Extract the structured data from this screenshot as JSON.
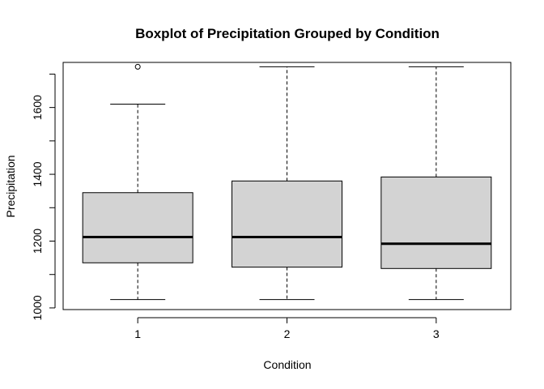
{
  "chart_data": {
    "type": "boxplot",
    "title": "Boxplot of Precipitation Grouped by Condition",
    "xlabel": "Condition",
    "ylabel": "Precipitation",
    "ylim": [
      995,
      1735
    ],
    "yticks": [
      1000,
      1200,
      1400,
      1600
    ],
    "y_minor_ticks": [
      1100,
      1300,
      1500,
      1700
    ],
    "categories": [
      "1",
      "2",
      "3"
    ],
    "boxes": [
      {
        "category": "1",
        "min": 1025,
        "q1": 1135,
        "median": 1212,
        "q3": 1345,
        "max": 1610,
        "outliers": [
          1722
        ]
      },
      {
        "category": "2",
        "min": 1025,
        "q1": 1122,
        "median": 1212,
        "q3": 1380,
        "max": 1722,
        "outliers": []
      },
      {
        "category": "3",
        "min": 1025,
        "q1": 1118,
        "median": 1192,
        "q3": 1392,
        "max": 1722,
        "outliers": []
      }
    ],
    "box_fill": "#d3d3d3",
    "grid": false
  }
}
